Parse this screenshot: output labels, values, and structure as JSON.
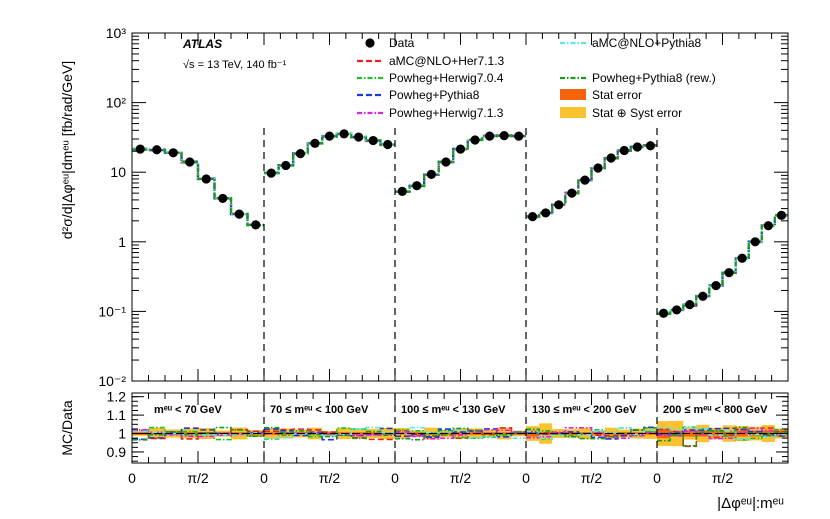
{
  "chart_data": {
    "type": "line",
    "experiment": "ATLAS",
    "energy_label": "√s = 13 TeV, 140 fb⁻¹",
    "ylabel_top": "d²σ/d|Δφᵉᵘ|dmᵉᵘ [fb/rad/GeV]",
    "ylabel_bottom": "MC/Data",
    "xlabel": "|Δφᵉᵘ|:mᵉᵘ",
    "yscale_top": "log",
    "ylim_top": [
      0.01,
      1000
    ],
    "ylim_bottom": [
      0.84,
      1.22
    ],
    "y_ticks_top": [
      {
        "v": 0.01,
        "label": "10⁻²"
      },
      {
        "v": 0.1,
        "label": "10⁻¹"
      },
      {
        "v": 1,
        "label": "1"
      },
      {
        "v": 10,
        "label": "10"
      },
      {
        "v": 100,
        "label": "10²"
      },
      {
        "v": 1000,
        "label": "10³"
      }
    ],
    "y_ticks_bottom": [
      "0.9",
      "1",
      "1.1",
      "1.2"
    ],
    "x_tick_labels": [
      "0",
      "π/2",
      "0",
      "π/2",
      "0",
      "π/2",
      "0",
      "π/2",
      "0",
      "π/2"
    ],
    "x_range_per_region": [
      0,
      3.1416
    ],
    "regions": [
      {
        "label": "mᵉᵘ < 70 GeV",
        "data": [
          21.5,
          21.0,
          19.0,
          14.0,
          8.0,
          4.2,
          2.5,
          1.75
        ]
      },
      {
        "label": "70 ≤ mᵉᵘ < 100 GeV",
        "data": [
          9.7,
          12.5,
          18.5,
          26.0,
          33.0,
          35.5,
          32.0,
          28.5,
          25.0
        ]
      },
      {
        "label": "100 ≤ mᵉᵘ < 130 GeV",
        "data": [
          5.3,
          6.4,
          9.3,
          14.0,
          21.5,
          29.0,
          33.0,
          33.5,
          33.0
        ]
      },
      {
        "label": "130 ≤ mᵉᵘ < 200 GeV",
        "data": [
          2.3,
          2.6,
          3.4,
          5.0,
          7.7,
          11.5,
          16.0,
          20.5,
          23.0,
          24.0
        ]
      },
      {
        "label": "200 ≤ mᵉᵘ < 800 GeV",
        "data": [
          0.094,
          0.105,
          0.125,
          0.165,
          0.235,
          0.36,
          0.58,
          1.0,
          1.7,
          2.4
        ]
      }
    ],
    "legend_placement": "top",
    "legend": [
      {
        "name": "Data",
        "style": "marker",
        "color": "#000000"
      },
      {
        "name": "aMC@NLO+Her7.1.3",
        "style": "dash",
        "color": "#e8221d"
      },
      {
        "name": "Powheg+Herwig7.0.4",
        "style": "dashdot",
        "color": "#1fc21f"
      },
      {
        "name": "Powheg+Pythia8",
        "style": "dash",
        "color": "#1e35e0"
      },
      {
        "name": "Powheg+Herwig7.1.3",
        "style": "dashdot",
        "color": "#e020e0"
      },
      {
        "name": "aMC@NLO+Pythia8",
        "style": "dashdot",
        "color": "#5ce8e8"
      },
      {
        "name": "Powheg+Pythia8 (rew.)",
        "style": "dashdot",
        "color": "#1a9a1a"
      },
      {
        "name": "Stat error",
        "style": "box",
        "color": "#f5640c"
      },
      {
        "name": "Stat ⊕ Syst error",
        "style": "box",
        "color": "#f9c22e"
      }
    ],
    "colors": {
      "stat_band": "#f5640c",
      "syst_band": "#f9c22e"
    }
  }
}
